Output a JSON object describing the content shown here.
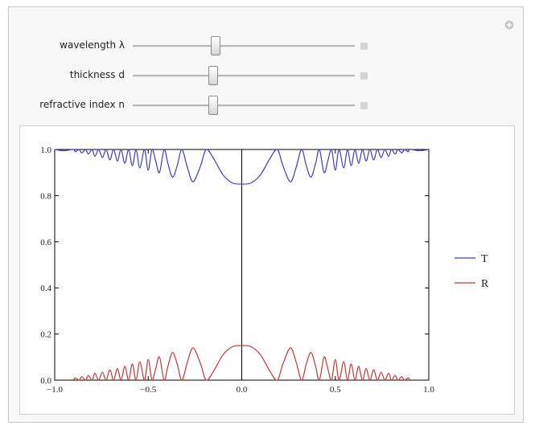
{
  "controls": [
    {
      "label": "wavelength λ"
    },
    {
      "label": "thickness d"
    },
    {
      "label": "refractive index n"
    }
  ],
  "chart_data": {
    "type": "line",
    "x": [
      -1,
      -0.95,
      -0.9,
      -0.89,
      -0.87,
      -0.855,
      -0.835,
      -0.82,
      -0.8,
      -0.785,
      -0.765,
      -0.745,
      -0.725,
      -0.705,
      -0.685,
      -0.665,
      -0.645,
      -0.625,
      -0.605,
      -0.585,
      -0.565,
      -0.545,
      -0.52,
      -0.5,
      -0.48,
      -0.46,
      -0.44,
      -0.415,
      -0.395,
      -0.37,
      -0.345,
      -0.32,
      -0.29,
      -0.26,
      -0.22,
      -0.19,
      -0.15,
      -0.1,
      -0.05,
      0,
      0.05,
      0.1,
      0.15,
      0.19,
      0.22,
      0.26,
      0.29,
      0.32,
      0.345,
      0.37,
      0.395,
      0.415,
      0.44,
      0.46,
      0.48,
      0.5,
      0.52,
      0.545,
      0.565,
      0.585,
      0.605,
      0.625,
      0.645,
      0.665,
      0.685,
      0.705,
      0.725,
      0.745,
      0.765,
      0.785,
      0.8,
      0.82,
      0.835,
      0.855,
      0.87,
      0.89,
      0.9,
      0.95,
      1
    ],
    "series": [
      {
        "name": "T",
        "color": "#3b3bc4",
        "values": [
          1,
          0.995,
          1,
          0.99,
          1,
          0.985,
          1,
          0.98,
          1,
          0.97,
          1,
          0.965,
          1,
          0.955,
          1,
          0.95,
          1,
          0.94,
          1,
          0.93,
          1,
          0.92,
          1,
          0.91,
          1,
          0.95,
          0.9,
          1,
          0.94,
          0.88,
          0.93,
          1,
          0.92,
          0.86,
          0.93,
          1,
          0.96,
          0.89,
          0.855,
          0.85,
          0.855,
          0.89,
          0.96,
          1,
          0.93,
          0.86,
          0.92,
          1,
          0.93,
          0.88,
          0.94,
          1,
          0.9,
          0.95,
          1,
          0.91,
          1,
          0.92,
          1,
          0.93,
          1,
          0.94,
          1,
          0.95,
          1,
          0.955,
          1,
          0.965,
          1,
          0.97,
          1,
          0.98,
          1,
          0.985,
          1,
          0.99,
          1,
          0.995,
          1
        ]
      },
      {
        "name": "R",
        "color": "#cc3333",
        "values": [
          null,
          null,
          0,
          0.01,
          0,
          0.015,
          0,
          0.02,
          0,
          0.03,
          0,
          0.035,
          0,
          0.045,
          0,
          0.05,
          0,
          0.06,
          0,
          0.07,
          0,
          0.08,
          0,
          0.09,
          0,
          0.05,
          0.1,
          0,
          0.06,
          0.12,
          0.07,
          0,
          0.08,
          0.14,
          0.07,
          0,
          0.04,
          0.11,
          0.145,
          0.15,
          0.145,
          0.11,
          0.04,
          0,
          0.07,
          0.14,
          0.08,
          0,
          0.07,
          0.12,
          0.06,
          0,
          0.1,
          0.05,
          0,
          0.09,
          0,
          0.08,
          0,
          0.07,
          0,
          0.06,
          0,
          0.05,
          0,
          0.045,
          0,
          0.035,
          0,
          0.03,
          0,
          0.02,
          0,
          0.015,
          0,
          0.01,
          0,
          null,
          null
        ]
      }
    ],
    "xlim": [
      -1,
      1
    ],
    "ylim": [
      0,
      1
    ],
    "xticks": [
      {
        "value": -1,
        "label": "−1.0"
      },
      {
        "value": -0.5,
        "label": "−0.5"
      },
      {
        "value": 0,
        "label": "0.0"
      },
      0.5,
      {
        "value": 1,
        "label": "1.0"
      }
    ],
    "yticks": [
      {
        "value": 0,
        "label": "0.0"
      },
      0.2,
      0.4,
      0.6,
      0.8,
      {
        "value": 1,
        "label": "1.0"
      }
    ],
    "legend": "right"
  }
}
